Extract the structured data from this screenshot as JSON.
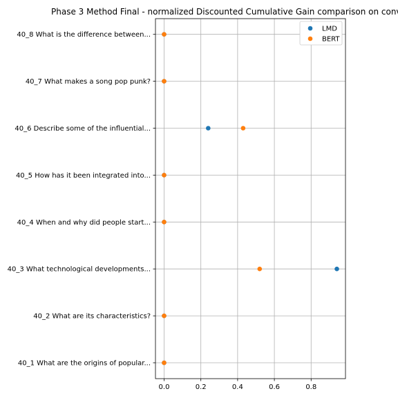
{
  "chart_data": {
    "type": "scatter",
    "title": "Phase 3 Method Final - normalized Discounted Cumulative Gain comparison on conv",
    "categories": [
      "40_1 What are the origins of popular...",
      "40_2 What are its characteristics?",
      "40_3 What technological developments...",
      "40_4 When and why did people start...",
      "40_5 How has it been integrated into...",
      "40_6 Describe some of the influential...",
      "40_7 What makes a song pop punk?",
      "40_8 What is the difference between..."
    ],
    "series": [
      {
        "name": "LMD",
        "color": "#1f77b4",
        "values": [
          0,
          0,
          0.94,
          0,
          0,
          0.24,
          0,
          0
        ]
      },
      {
        "name": "BERT",
        "color": "#ff7f0e",
        "values": [
          0,
          0,
          0.52,
          0,
          0,
          0.43,
          0,
          0
        ]
      }
    ],
    "x_ticks": [
      "0.0",
      "0.2",
      "0.4",
      "0.6",
      "0.8"
    ],
    "x_tick_values": [
      0,
      0.2,
      0.4,
      0.6,
      0.8
    ],
    "xlim": [
      -0.047,
      0.987
    ],
    "grid": true,
    "legend_position": "top-right",
    "xlabel": "",
    "ylabel": ""
  }
}
